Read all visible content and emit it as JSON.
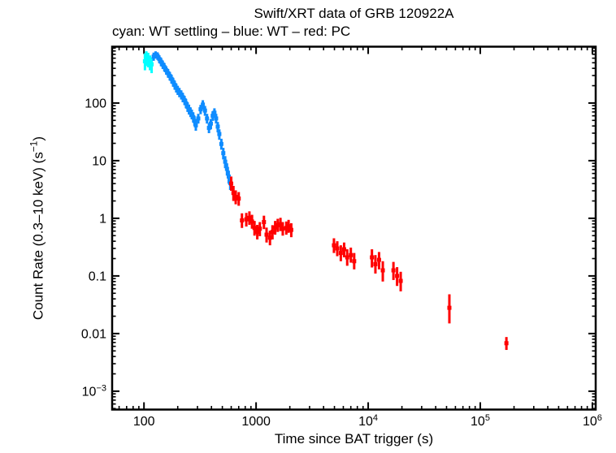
{
  "figure": {
    "title": "Swift/XRT data of GRB 120922A",
    "subtitle": "cyan: WT settling – blue: WT – red: PC",
    "background": "#ffffff",
    "frame_color": "#000000"
  },
  "chart_data": {
    "type": "scatter",
    "title": "Swift/XRT data of GRB 120922A",
    "subtitle": "cyan: WT settling – blue: WT – red: PC",
    "xlabel": "Time since BAT trigger (s)",
    "ylabel": "Count Rate (0.3–10 keV) (s⁻¹)",
    "ylabel_parts": {
      "main": "Count Rate (0.3–10 keV) (s",
      "sup": "−1",
      "end": ")"
    },
    "xscale": "log",
    "yscale": "log",
    "grid": false,
    "legend_position": "subtitle-line",
    "xlim": [
      52,
      1070000
    ],
    "ylim": [
      0.00048,
      950
    ],
    "x_major_ticks": [
      100,
      1000,
      10000,
      100000,
      1000000
    ],
    "x_tick_labels": [
      {
        "base": "100"
      },
      {
        "base": "1000"
      },
      {
        "base": "10",
        "exp": "4"
      },
      {
        "base": "10",
        "exp": "5"
      },
      {
        "base": "10",
        "exp": "6"
      }
    ],
    "y_major_ticks": [
      100,
      10,
      1,
      0.1,
      0.01,
      0.001
    ],
    "y_tick_labels": [
      {
        "base": "100"
      },
      {
        "base": "10"
      },
      {
        "base": "1"
      },
      {
        "base": "0.1"
      },
      {
        "base": "0.01"
      },
      {
        "base": "10",
        "exp": "−3"
      }
    ],
    "series": [
      {
        "name": "WT settling",
        "color": "#00ffff",
        "bin_frac": 0.015,
        "points": [
          [
            102,
            530,
            160,
            200
          ],
          [
            105,
            620,
            180,
            170
          ],
          [
            109,
            585,
            170,
            160
          ],
          [
            113,
            520,
            150,
            150
          ],
          [
            117,
            470,
            140,
            150
          ]
        ]
      },
      {
        "name": "WT",
        "color": "#0f8cff",
        "bin_frac": 0.018,
        "points": [
          [
            122,
            640,
            100,
            110
          ],
          [
            127,
            690,
            100,
            100
          ],
          [
            132,
            660,
            100,
            100
          ],
          [
            137,
            580,
            90,
            95
          ],
          [
            142,
            520,
            85,
            90
          ],
          [
            147,
            465,
            75,
            80
          ],
          [
            152,
            420,
            70,
            75
          ],
          [
            158,
            370,
            60,
            65
          ],
          [
            164,
            330,
            55,
            60
          ],
          [
            170,
            295,
            50,
            52
          ],
          [
            176,
            262,
            45,
            48
          ],
          [
            182,
            232,
            40,
            42
          ],
          [
            188,
            206,
            36,
            38
          ],
          [
            194,
            184,
            32,
            34
          ],
          [
            200,
            168,
            30,
            31
          ],
          [
            207,
            154,
            28,
            29
          ],
          [
            215,
            140,
            25,
            26
          ],
          [
            222,
            126,
            23,
            24
          ],
          [
            230,
            112,
            20,
            21
          ],
          [
            237,
            99,
            18,
            19
          ],
          [
            245,
            86,
            16,
            17
          ],
          [
            252,
            78,
            15,
            16
          ],
          [
            260,
            70,
            13,
            14
          ],
          [
            267,
            64,
            12,
            13
          ],
          [
            275,
            57,
            11,
            12
          ],
          [
            282,
            49,
            9,
            10
          ],
          [
            290,
            41,
            8,
            9
          ],
          [
            305,
            54,
            10,
            11
          ],
          [
            320,
            78,
            14,
            15
          ],
          [
            335,
            94,
            17,
            18
          ],
          [
            350,
            74,
            14,
            15
          ],
          [
            365,
            54,
            10,
            11
          ],
          [
            380,
            37,
            7,
            8
          ],
          [
            395,
            44,
            9,
            9
          ],
          [
            410,
            60,
            11,
            12
          ],
          [
            425,
            68,
            13,
            13
          ],
          [
            440,
            54,
            10,
            11
          ],
          [
            455,
            39,
            8,
            8
          ],
          [
            470,
            29,
            6,
            6
          ],
          [
            490,
            19.5,
            4,
            4.5
          ],
          [
            510,
            13.5,
            3,
            3.2
          ],
          [
            530,
            9.6,
            2.2,
            2.4
          ],
          [
            550,
            7.2,
            1.7,
            1.8
          ],
          [
            570,
            5.3,
            1.3,
            1.4
          ],
          [
            588,
            4.1,
            1.0,
            1.1
          ]
        ]
      },
      {
        "name": "PC",
        "color": "#ff0000",
        "bin_frac": 0.013,
        "points": [
          [
            600,
            4.0,
            1.0,
            1.3
          ],
          [
            628,
            2.75,
            0.75,
            0.9
          ],
          [
            658,
            2.35,
            0.6,
            0.7
          ],
          [
            700,
            2.2,
            0.55,
            0.65
          ],
          [
            748,
            0.92,
            0.24,
            0.3
          ],
          [
            818,
            0.96,
            0.24,
            0.28
          ],
          [
            872,
            1.02,
            0.25,
            0.3
          ],
          [
            920,
            0.88,
            0.22,
            0.27
          ],
          [
            968,
            0.68,
            0.18,
            0.22
          ],
          [
            1025,
            0.58,
            0.15,
            0.19
          ],
          [
            1080,
            0.66,
            0.17,
            0.2
          ],
          [
            1175,
            0.86,
            0.21,
            0.25
          ],
          [
            1240,
            0.52,
            0.14,
            0.17
          ],
          [
            1330,
            0.46,
            0.12,
            0.15
          ],
          [
            1400,
            0.58,
            0.15,
            0.18
          ],
          [
            1480,
            0.69,
            0.17,
            0.21
          ],
          [
            1560,
            0.76,
            0.18,
            0.22
          ],
          [
            1650,
            0.79,
            0.19,
            0.23
          ],
          [
            1730,
            0.66,
            0.16,
            0.2
          ],
          [
            1860,
            0.68,
            0.16,
            0.2
          ],
          [
            1950,
            0.73,
            0.17,
            0.21
          ],
          [
            2060,
            0.63,
            0.16,
            0.19
          ],
          [
            4950,
            0.34,
            0.09,
            0.11
          ],
          [
            5300,
            0.3,
            0.08,
            0.1
          ],
          [
            5700,
            0.25,
            0.07,
            0.09
          ],
          [
            6100,
            0.29,
            0.08,
            0.09
          ],
          [
            6500,
            0.21,
            0.06,
            0.08
          ],
          [
            7000,
            0.23,
            0.06,
            0.08
          ],
          [
            7500,
            0.18,
            0.05,
            0.07
          ],
          [
            10800,
            0.21,
            0.07,
            0.08
          ],
          [
            11600,
            0.16,
            0.05,
            0.07
          ],
          [
            12500,
            0.19,
            0.06,
            0.07
          ],
          [
            13500,
            0.125,
            0.045,
            0.055
          ],
          [
            16800,
            0.125,
            0.04,
            0.05
          ],
          [
            18100,
            0.1,
            0.033,
            0.042
          ],
          [
            19500,
            0.082,
            0.028,
            0.036
          ],
          [
            53000,
            0.028,
            0.013,
            0.02
          ],
          [
            171000,
            0.0068,
            0.0016,
            0.0019
          ]
        ]
      }
    ]
  }
}
